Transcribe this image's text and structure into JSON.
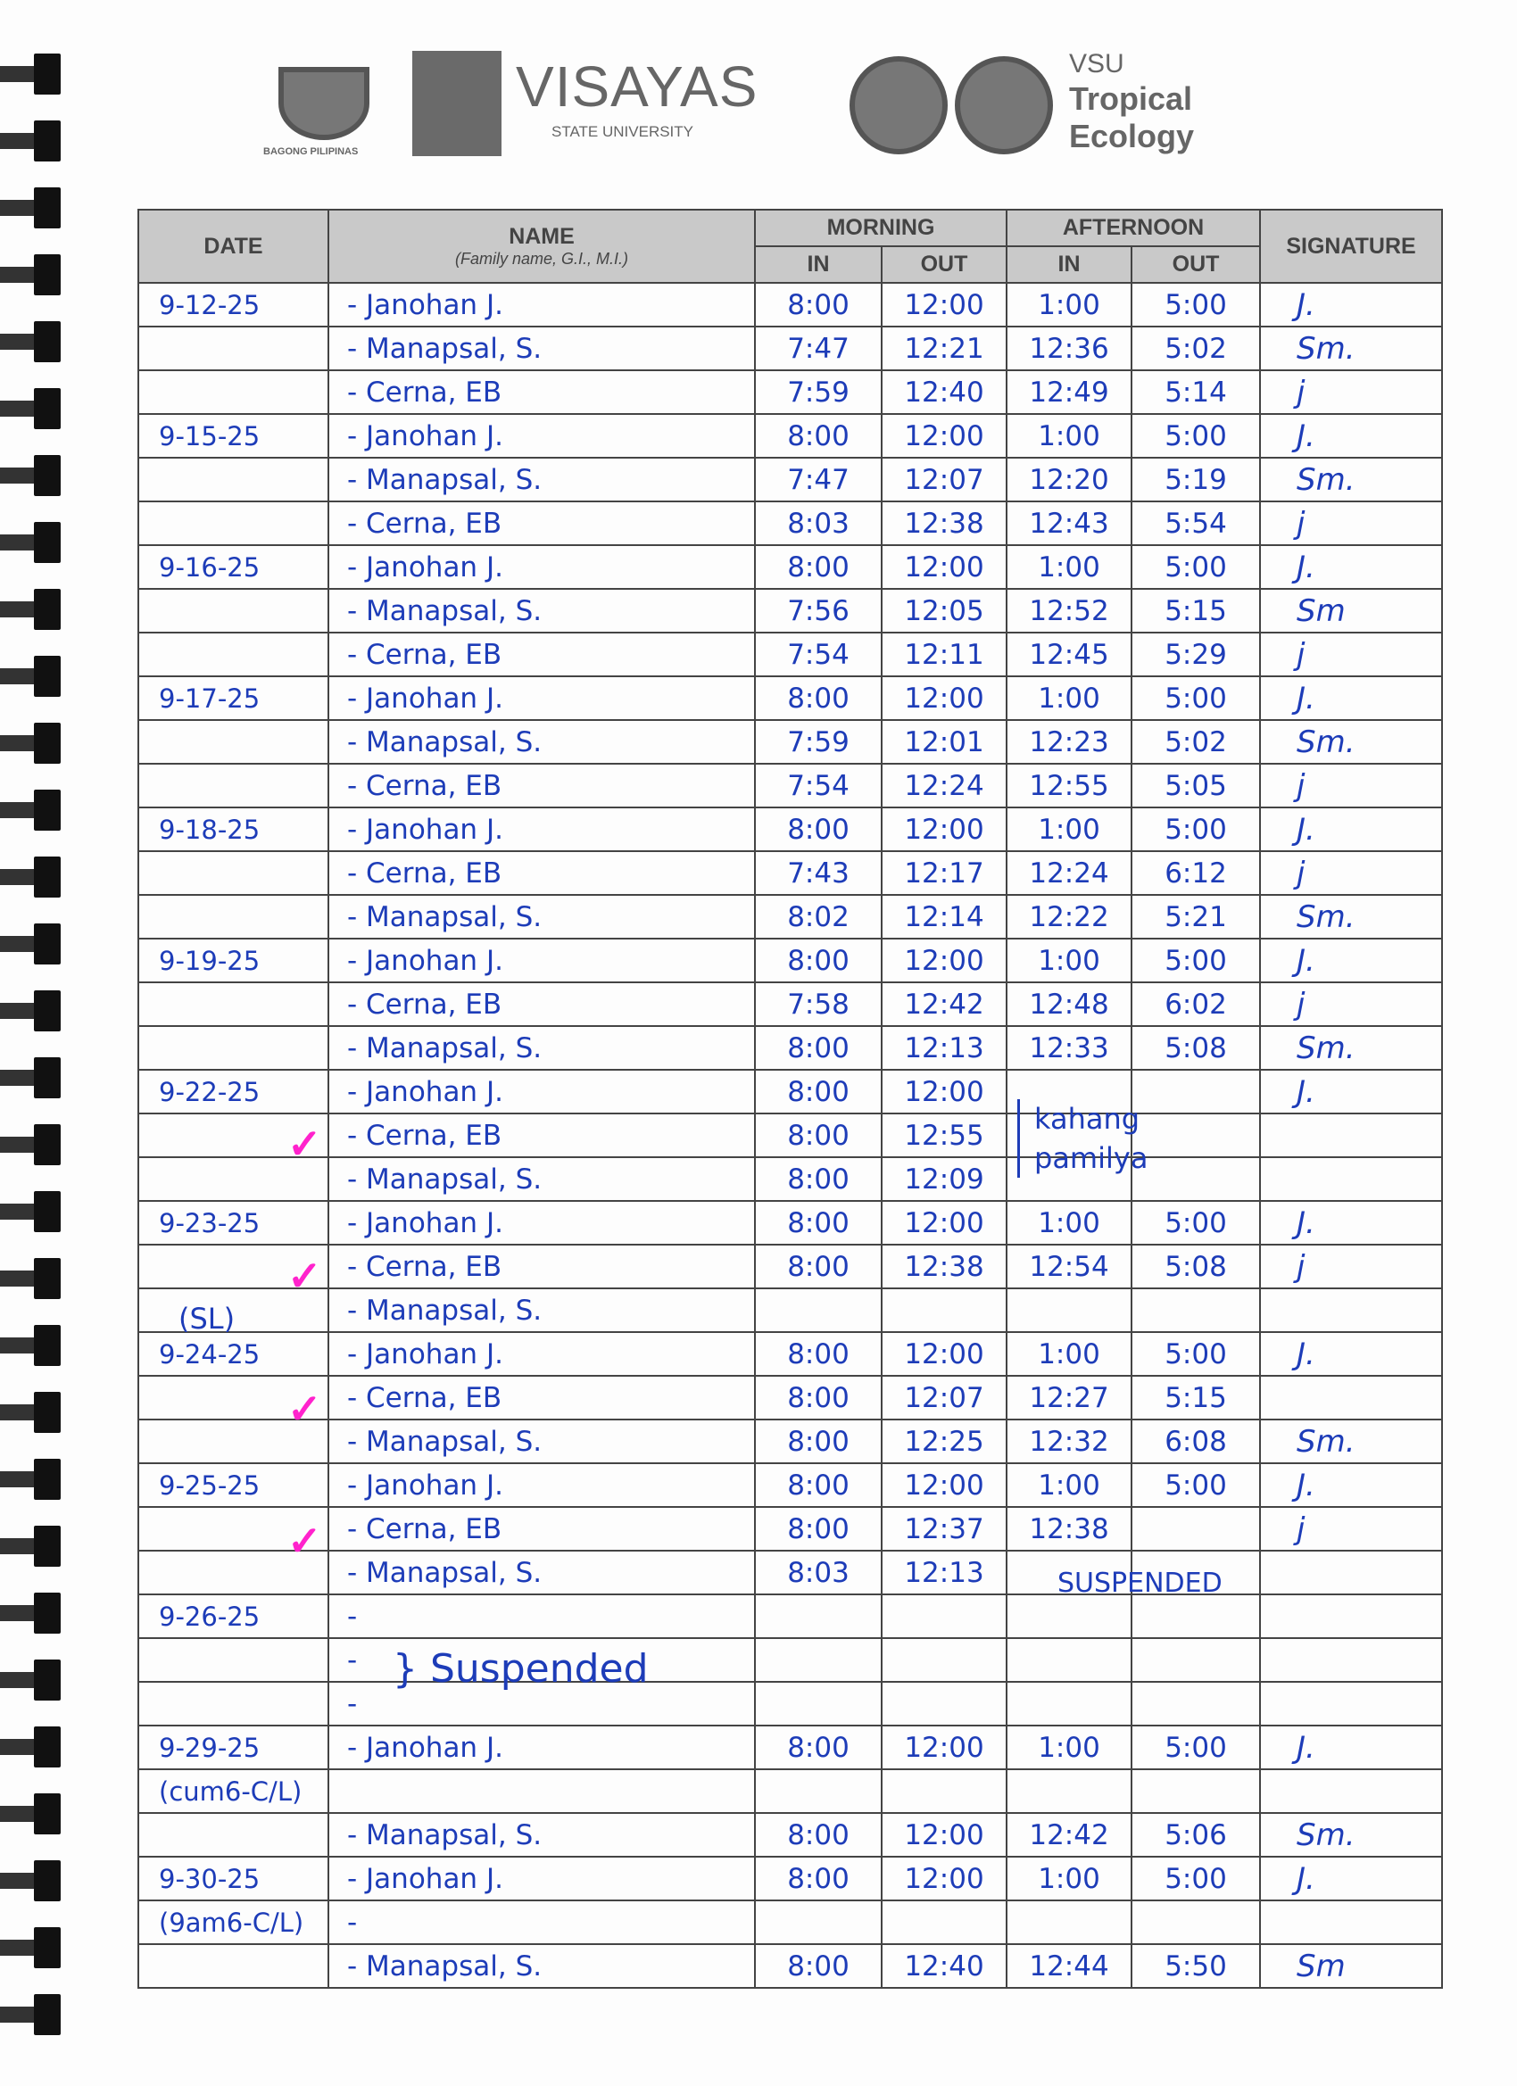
{
  "logos": {
    "bagong_pilipinas": "BAGONG PILIPINAS",
    "vsu_name": "VISAYAS",
    "vsu_sub": "STATE UNIVERSITY",
    "tropical_1": "VSU",
    "tropical_2": "Tropical",
    "tropical_3": "Ecology"
  },
  "header": {
    "date": "DATE",
    "name": "NAME",
    "name_sub": "(Family name, G.I., M.I.)",
    "morning": "MORNING",
    "afternoon": "AFTERNOON",
    "in": "IN",
    "out": "OUT",
    "signature": "SIGNATURE"
  },
  "rows": [
    {
      "date": "9-12-25",
      "name": "- Janohan J.",
      "m_in": "8:00",
      "m_out": "12:00",
      "a_in": "1:00",
      "a_out": "5:00",
      "sig": "J."
    },
    {
      "date": "",
      "name": "- Manapsal, S.",
      "m_in": "7:47",
      "m_out": "12:21",
      "a_in": "12:36",
      "a_out": "5:02",
      "sig": "Sm."
    },
    {
      "date": "",
      "name": "- Cerna, EB",
      "m_in": "7:59",
      "m_out": "12:40",
      "a_in": "12:49",
      "a_out": "5:14",
      "sig": "j"
    },
    {
      "date": "9-15-25",
      "name": "- Janohan J.",
      "m_in": "8:00",
      "m_out": "12:00",
      "a_in": "1:00",
      "a_out": "5:00",
      "sig": "J."
    },
    {
      "date": "",
      "name": "- Manapsal, S.",
      "m_in": "7:47",
      "m_out": "12:07",
      "a_in": "12:20",
      "a_out": "5:19",
      "sig": "Sm."
    },
    {
      "date": "",
      "name": "- Cerna, EB",
      "m_in": "8:03",
      "m_out": "12:38",
      "a_in": "12:43",
      "a_out": "5:54",
      "sig": "j"
    },
    {
      "date": "9-16-25",
      "name": "- Janohan J.",
      "m_in": "8:00",
      "m_out": "12:00",
      "a_in": "1:00",
      "a_out": "5:00",
      "sig": "J."
    },
    {
      "date": "",
      "name": "- Manapsal, S.",
      "m_in": "7:56",
      "m_out": "12:05",
      "a_in": "12:52",
      "a_out": "5:15",
      "sig": "Sm"
    },
    {
      "date": "",
      "name": "- Cerna, EB",
      "m_in": "7:54",
      "m_out": "12:11",
      "a_in": "12:45",
      "a_out": "5:29",
      "sig": "j"
    },
    {
      "date": "9-17-25",
      "name": "- Janohan J.",
      "m_in": "8:00",
      "m_out": "12:00",
      "a_in": "1:00",
      "a_out": "5:00",
      "sig": "J."
    },
    {
      "date": "",
      "name": "- Manapsal, S.",
      "m_in": "7:59",
      "m_out": "12:01",
      "a_in": "12:23",
      "a_out": "5:02",
      "sig": "Sm."
    },
    {
      "date": "",
      "name": "- Cerna, EB",
      "m_in": "7:54",
      "m_out": "12:24",
      "a_in": "12:55",
      "a_out": "5:05",
      "sig": "j"
    },
    {
      "date": "9-18-25",
      "name": "- Janohan J.",
      "m_in": "8:00",
      "m_out": "12:00",
      "a_in": "1:00",
      "a_out": "5:00",
      "sig": "J."
    },
    {
      "date": "",
      "name": "- Cerna, EB",
      "m_in": "7:43",
      "m_out": "12:17",
      "a_in": "12:24",
      "a_out": "6:12",
      "sig": "j"
    },
    {
      "date": "",
      "name": "- Manapsal, S.",
      "m_in": "8:02",
      "m_out": "12:14",
      "a_in": "12:22",
      "a_out": "5:21",
      "sig": "Sm."
    },
    {
      "date": "9-19-25",
      "name": "- Janohan J.",
      "m_in": "8:00",
      "m_out": "12:00",
      "a_in": "1:00",
      "a_out": "5:00",
      "sig": "J."
    },
    {
      "date": "",
      "name": "- Cerna, EB",
      "m_in": "7:58",
      "m_out": "12:42",
      "a_in": "12:48",
      "a_out": "6:02",
      "sig": "j"
    },
    {
      "date": "",
      "name": "- Manapsal, S.",
      "m_in": "8:00",
      "m_out": "12:13",
      "a_in": "12:33",
      "a_out": "5:08",
      "sig": "Sm."
    },
    {
      "date": "9-22-25",
      "name": "- Janohan J.",
      "m_in": "8:00",
      "m_out": "12:00",
      "a_in": "",
      "a_out": "",
      "sig": "J."
    },
    {
      "date": "",
      "name": "- Cerna, EB",
      "m_in": "8:00",
      "m_out": "12:55",
      "a_in": "",
      "a_out": "",
      "sig": "",
      "check": true
    },
    {
      "date": "",
      "name": "- Manapsal, S.",
      "m_in": "8:00",
      "m_out": "12:09",
      "a_in": "",
      "a_out": "",
      "sig": ""
    },
    {
      "date": "9-23-25",
      "name": "- Janohan J.",
      "m_in": "8:00",
      "m_out": "12:00",
      "a_in": "1:00",
      "a_out": "5:00",
      "sig": "J."
    },
    {
      "date": "",
      "name": "- Cerna, EB",
      "m_in": "8:00",
      "m_out": "12:38",
      "a_in": "12:54",
      "a_out": "5:08",
      "sig": "j",
      "check": true
    },
    {
      "date": "",
      "name": "- Manapsal, S.",
      "m_in": "",
      "m_out": "",
      "a_in": "",
      "a_out": "",
      "sig": ""
    },
    {
      "date": "9-24-25",
      "name": "- Janohan J.",
      "m_in": "8:00",
      "m_out": "12:00",
      "a_in": "1:00",
      "a_out": "5:00",
      "sig": "J."
    },
    {
      "date": "",
      "name": "- Cerna, EB",
      "m_in": "8:00",
      "m_out": "12:07",
      "a_in": "12:27",
      "a_out": "5:15",
      "sig": "",
      "check": true
    },
    {
      "date": "",
      "name": "- Manapsal, S.",
      "m_in": "8:00",
      "m_out": "12:25",
      "a_in": "12:32",
      "a_out": "6:08",
      "sig": "Sm."
    },
    {
      "date": "9-25-25",
      "name": "- Janohan J.",
      "m_in": "8:00",
      "m_out": "12:00",
      "a_in": "1:00",
      "a_out": "5:00",
      "sig": "J."
    },
    {
      "date": "",
      "name": "- Cerna, EB",
      "m_in": "8:00",
      "m_out": "12:37",
      "a_in": "12:38",
      "a_out": "",
      "sig": "j",
      "check": true
    },
    {
      "date": "",
      "name": "- Manapsal, S.",
      "m_in": "8:03",
      "m_out": "12:13",
      "a_in": "",
      "a_out": "",
      "sig": ""
    },
    {
      "date": "9-26-25",
      "name": "-",
      "m_in": "",
      "m_out": "",
      "a_in": "",
      "a_out": "",
      "sig": ""
    },
    {
      "date": "",
      "name": "-",
      "m_in": "",
      "m_out": "",
      "a_in": "",
      "a_out": "",
      "sig": ""
    },
    {
      "date": "",
      "name": "-",
      "m_in": "",
      "m_out": "",
      "a_in": "",
      "a_out": "",
      "sig": ""
    },
    {
      "date": "9-29-25",
      "name": "- Janohan J.",
      "m_in": "8:00",
      "m_out": "12:00",
      "a_in": "1:00",
      "a_out": "5:00",
      "sig": "J."
    },
    {
      "date": "(cum6-C/L)",
      "name": "",
      "m_in": "",
      "m_out": "",
      "a_in": "",
      "a_out": "",
      "sig": ""
    },
    {
      "date": "",
      "name": "- Manapsal, S.",
      "m_in": "8:00",
      "m_out": "12:00",
      "a_in": "12:42",
      "a_out": "5:06",
      "sig": "Sm."
    },
    {
      "date": "9-30-25",
      "name": "- Janohan J.",
      "m_in": "8:00",
      "m_out": "12:00",
      "a_in": "1:00",
      "a_out": "5:00",
      "sig": "J."
    },
    {
      "date": "(9am6-C/L)",
      "name": "-",
      "m_in": "",
      "m_out": "",
      "a_in": "",
      "a_out": "",
      "sig": ""
    },
    {
      "date": "",
      "name": "- Manapsal, S.",
      "m_in": "8:00",
      "m_out": "12:40",
      "a_in": "12:44",
      "a_out": "5:50",
      "sig": "Sm"
    }
  ],
  "notes": {
    "family_leave": "kahang pamilya",
    "sick_leave": "(SL)",
    "suspended_pm": "SUSPENDED",
    "suspended_day": "} Suspended"
  },
  "colors": {
    "ink": "#1d3cb8",
    "check": "#ff22cc",
    "header_bg": "#c9c9c9"
  }
}
